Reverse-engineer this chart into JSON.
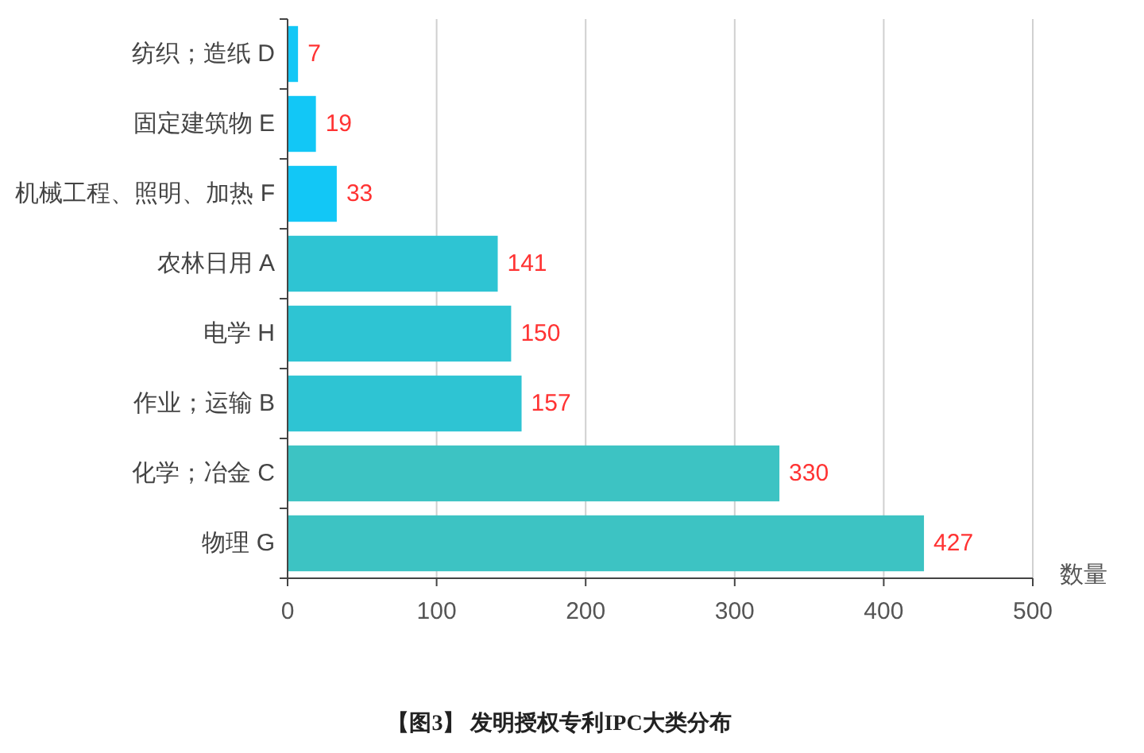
{
  "chart_data": {
    "type": "bar",
    "orientation": "horizontal",
    "title": "【图3】 发明授权专利IPC大类分布",
    "xlabel": "数量",
    "categories": [
      "纺织；造纸 D",
      "固定建筑物 E",
      "机械工程、照明、加热 F",
      "农林日用 A",
      "电学 H",
      "作业；运输 B",
      "化学；冶金 C",
      "物理 G"
    ],
    "values": [
      7,
      19,
      33,
      141,
      150,
      157,
      330,
      427
    ],
    "colors": [
      "#12c7f6",
      "#12c7f6",
      "#12c7f6",
      "#2ec4d3",
      "#2ec4d3",
      "#2ec4d3",
      "#3dc3c3",
      "#3dc3c3"
    ],
    "xlim": [
      0,
      500
    ],
    "xticks": [
      0,
      100,
      200,
      300,
      400,
      500
    ],
    "grid": "x",
    "data_labels": true
  }
}
